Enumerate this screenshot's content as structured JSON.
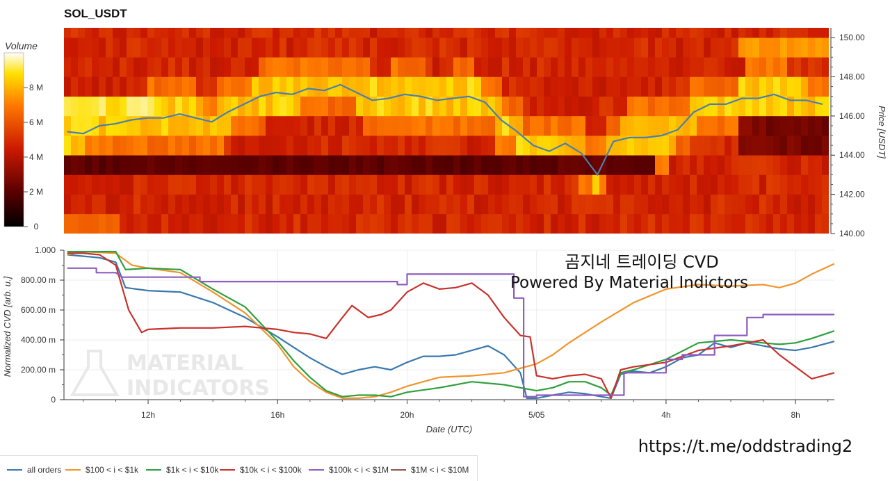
{
  "title": "SOL_USDT",
  "colorbar": {
    "title": "Volume",
    "ticks": [
      {
        "v": 0,
        "label": "0"
      },
      {
        "v": 2,
        "label": "2 M"
      },
      {
        "v": 4,
        "label": "4 M"
      },
      {
        "v": 6,
        "label": "6 M"
      },
      {
        "v": 8,
        "label": "8 M"
      }
    ],
    "max": 10
  },
  "annotation": {
    "line1": "곰지네 트레이딩 CVD",
    "line2": "Powered By Material Indictors"
  },
  "url_text": "https://t.me/oddstrading2",
  "watermark": [
    "MATERIAL",
    "INDICATORS"
  ],
  "chart_data": [
    {
      "type": "heatmap",
      "title": "SOL_USDT",
      "ylabel": "Price [USDT]",
      "ylim": [
        140,
        150.5
      ],
      "yticks": [
        "140.00",
        "142.00",
        "144.00",
        "146.00",
        "148.00",
        "150.00"
      ],
      "value_label": "Volume",
      "price_line_color": "#4a7fb0",
      "price_line": {
        "x_hours": [
          9.5,
          10,
          10.5,
          11,
          11.5,
          12,
          12.5,
          13,
          13.5,
          14,
          14.5,
          15,
          15.5,
          16,
          16.5,
          17,
          17.5,
          18,
          18.5,
          19,
          19.5,
          20,
          20.5,
          21,
          21.5,
          22,
          22.5,
          23,
          23.5,
          24,
          24.5,
          25,
          25.5,
          26,
          26.5,
          27,
          27.5,
          28,
          28.5,
          29,
          29.5,
          30,
          30.5,
          31,
          31.5,
          32,
          32.5,
          33
        ],
        "price": [
          145.2,
          145.1,
          145.5,
          145.6,
          145.8,
          145.9,
          145.9,
          146.1,
          145.9,
          145.7,
          146.2,
          146.6,
          147.0,
          147.2,
          147.1,
          147.4,
          147.3,
          147.6,
          147.2,
          146.8,
          146.9,
          147.1,
          147.0,
          146.8,
          146.9,
          147.0,
          146.7,
          145.8,
          145.2,
          144.5,
          144.2,
          144.6,
          144.1,
          143.0,
          144.7,
          144.9,
          144.9,
          145.0,
          145.3,
          146.2,
          146.6,
          146.6,
          146.9,
          146.9,
          147.1,
          146.8,
          146.8,
          146.6
        ]
      }
    },
    {
      "type": "line",
      "xlabel": "Date (UTC)",
      "ylabel": "Normalized CVD [arb. u.]",
      "ylim": [
        0,
        1.0
      ],
      "yticks": [
        "0",
        "200.00 m",
        "400.00 m",
        "600.00 m",
        "800.00 m",
        "1.000"
      ],
      "xticks": [
        {
          "h": 12,
          "label": "12h"
        },
        {
          "h": 16,
          "label": "16h"
        },
        {
          "h": 20,
          "label": "20h"
        },
        {
          "h": 24,
          "label": "5/05"
        },
        {
          "h": 28,
          "label": "4h"
        },
        {
          "h": 32,
          "label": "8h"
        }
      ],
      "xlim_hours": [
        9.4,
        33.2
      ],
      "series": [
        {
          "name": "all orders",
          "color": "#3978ad",
          "x": [
            9.5,
            10,
            10.5,
            11,
            11.3,
            12,
            13,
            14,
            15,
            16,
            16.5,
            17,
            17.5,
            18,
            18.5,
            19,
            19.5,
            20,
            20.5,
            21,
            21.5,
            22,
            22.5,
            23,
            23.5,
            23.7,
            24,
            24.5,
            25,
            25.5,
            26,
            26.3,
            26.6,
            27,
            27.5,
            28,
            28.5,
            29,
            29.5,
            30,
            30.5,
            31,
            31.5,
            32,
            32.5,
            33.2
          ],
          "y": [
            0.97,
            0.96,
            0.95,
            0.92,
            0.75,
            0.73,
            0.72,
            0.65,
            0.55,
            0.42,
            0.35,
            0.28,
            0.22,
            0.17,
            0.2,
            0.22,
            0.2,
            0.25,
            0.29,
            0.29,
            0.3,
            0.33,
            0.36,
            0.3,
            0.18,
            0.01,
            0.01,
            0.03,
            0.05,
            0.04,
            0.02,
            0.01,
            0.17,
            0.19,
            0.18,
            0.22,
            0.28,
            0.3,
            0.38,
            0.35,
            0.38,
            0.36,
            0.34,
            0.33,
            0.35,
            0.39
          ]
        },
        {
          "name": "$100 < i < $1k",
          "color": "#f0942c",
          "x": [
            9.5,
            10,
            11,
            11.5,
            12,
            13,
            14,
            15,
            16,
            16.5,
            17,
            17.5,
            18,
            18.5,
            19,
            19.5,
            20,
            21,
            22,
            23,
            24,
            24.5,
            25,
            26,
            27,
            28,
            29,
            30,
            31,
            31.5,
            32,
            32.5,
            33.2
          ],
          "y": [
            0.97,
            0.99,
            0.98,
            0.9,
            0.88,
            0.85,
            0.72,
            0.58,
            0.37,
            0.22,
            0.12,
            0.05,
            0.01,
            0.01,
            0.02,
            0.05,
            0.09,
            0.15,
            0.16,
            0.18,
            0.24,
            0.3,
            0.38,
            0.52,
            0.65,
            0.74,
            0.77,
            0.76,
            0.77,
            0.75,
            0.78,
            0.84,
            0.91
          ]
        },
        {
          "name": "$1k < i < $10k",
          "color": "#2e9f3c",
          "x": [
            9.5,
            10,
            11,
            11.3,
            12,
            13,
            14,
            15,
            16,
            16.5,
            17,
            17.5,
            18,
            18.5,
            19,
            19.5,
            20,
            21,
            22,
            23,
            24,
            24.5,
            25,
            25.5,
            26,
            26.3,
            26.6,
            27,
            28,
            29,
            30,
            30.5,
            31,
            31.5,
            32,
            32.5,
            33.2
          ],
          "y": [
            0.99,
            0.99,
            0.99,
            0.87,
            0.88,
            0.87,
            0.74,
            0.62,
            0.39,
            0.26,
            0.15,
            0.06,
            0.02,
            0.03,
            0.03,
            0.02,
            0.05,
            0.08,
            0.12,
            0.1,
            0.06,
            0.08,
            0.12,
            0.12,
            0.08,
            0.03,
            0.18,
            0.2,
            0.27,
            0.38,
            0.4,
            0.39,
            0.38,
            0.37,
            0.38,
            0.41,
            0.46
          ]
        },
        {
          "name": "$10k < i < $100k",
          "color": "#c8312b",
          "x": [
            9.5,
            10,
            10.5,
            11,
            11.4,
            11.8,
            12,
            13,
            14,
            15,
            16,
            16.5,
            17,
            17.5,
            18,
            18.3,
            18.8,
            19.2,
            19.5,
            20,
            20.5,
            21,
            21.5,
            22,
            22.5,
            23,
            23.5,
            23.8,
            24,
            24.5,
            25,
            25.5,
            26,
            26.3,
            26.6,
            27,
            28,
            29,
            30,
            30.5,
            31,
            31.5,
            32,
            32.5,
            33.2
          ],
          "y": [
            0.98,
            0.98,
            0.97,
            0.9,
            0.6,
            0.45,
            0.47,
            0.48,
            0.48,
            0.49,
            0.47,
            0.45,
            0.44,
            0.41,
            0.55,
            0.63,
            0.55,
            0.57,
            0.6,
            0.72,
            0.78,
            0.74,
            0.75,
            0.78,
            0.7,
            0.55,
            0.43,
            0.42,
            0.16,
            0.14,
            0.16,
            0.17,
            0.14,
            0.01,
            0.2,
            0.22,
            0.25,
            0.33,
            0.36,
            0.38,
            0.4,
            0.3,
            0.22,
            0.14,
            0.18
          ]
        },
        {
          "name": "$100k < i < $1M",
          "color": "#8e5cbe",
          "x": [
            9.5,
            10.4,
            10.4,
            11,
            11.2,
            11.2,
            13.6,
            13.6,
            14.2,
            14.2,
            19.7,
            19.7,
            20,
            20,
            23.3,
            23.3,
            23.6,
            23.6,
            24,
            24,
            26.7,
            26.7,
            27,
            27,
            28,
            28,
            28.5,
            28.5,
            29.5,
            29.5,
            30.5,
            30.5,
            31,
            31,
            32,
            32,
            33.2
          ],
          "y": [
            0.88,
            0.88,
            0.85,
            0.85,
            0.82,
            0.82,
            0.82,
            0.79,
            0.79,
            0.79,
            0.79,
            0.77,
            0.77,
            0.84,
            0.84,
            0.68,
            0.68,
            0.02,
            0.02,
            0.03,
            0.03,
            0.18,
            0.18,
            0.18,
            0.18,
            0.27,
            0.27,
            0.3,
            0.3,
            0.43,
            0.43,
            0.55,
            0.55,
            0.57,
            0.57,
            0.57,
            0.57
          ]
        },
        {
          "name": "$1M < i < $10M",
          "color": "#8c564b",
          "x": [],
          "y": []
        }
      ]
    }
  ]
}
